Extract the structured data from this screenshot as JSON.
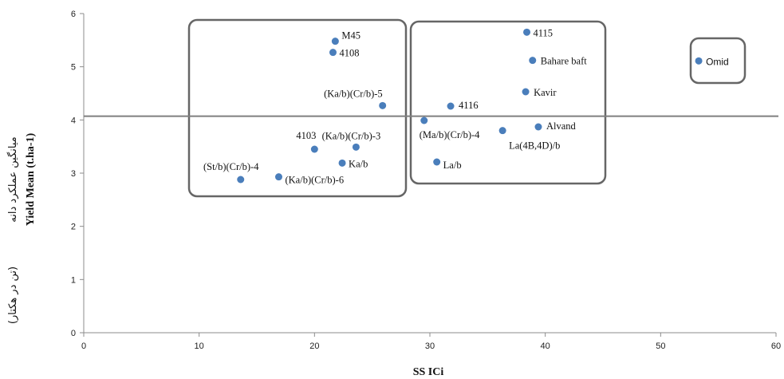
{
  "chart_data": {
    "type": "scatter",
    "title": "",
    "xlabel": "SS ICi",
    "ylabel": "Yield Mean (t.ha-1)",
    "ylabel_fa_line1": "میانگین عملکرد دانه",
    "ylabel_fa_line2": "(تن در هکتار)",
    "xlim": [
      0,
      60
    ],
    "ylim": [
      0,
      6
    ],
    "x_ticks": [
      0,
      10,
      20,
      30,
      40,
      50,
      60
    ],
    "y_ticks": [
      0,
      1,
      2,
      3,
      4,
      5,
      6
    ],
    "grid": false,
    "legend": "none",
    "reference_line_y": 4.07,
    "marker_color": "#4a7ebb",
    "line_color": "#7f7f7f",
    "points": [
      {
        "label": "M45",
        "x": 21.8,
        "y": 5.48
      },
      {
        "label": "4108",
        "x": 21.6,
        "y": 5.27
      },
      {
        "label": "(Ka/b)(Cr/b)-5",
        "x": 25.9,
        "y": 4.27
      },
      {
        "label": "4103",
        "x": 20.0,
        "y": 3.45
      },
      {
        "label": "(Ka/b)(Cr/b)-3",
        "x": 23.6,
        "y": 3.49
      },
      {
        "label": "Ka/b",
        "x": 22.4,
        "y": 3.19
      },
      {
        "label": "(St/b)(Cr/b)-4",
        "x": 13.6,
        "y": 2.88
      },
      {
        "label": "(Ka/b)(Cr/b)-6",
        "x": 16.9,
        "y": 2.93
      },
      {
        "label": "4115",
        "x": 38.4,
        "y": 5.65
      },
      {
        "label": "Bahare baft",
        "x": 38.9,
        "y": 5.12
      },
      {
        "label": "Kavir",
        "x": 38.3,
        "y": 4.53
      },
      {
        "label": "4116",
        "x": 31.8,
        "y": 4.26
      },
      {
        "label": "(Ma/b)(Cr/b)-4",
        "x": 29.5,
        "y": 3.99
      },
      {
        "label": "La(4B,4D)/b",
        "x": 36.3,
        "y": 3.8
      },
      {
        "label": "Alvand",
        "x": 39.4,
        "y": 3.87
      },
      {
        "label": "La/b",
        "x": 30.6,
        "y": 3.21
      },
      {
        "label": "Omid",
        "x": 53.3,
        "y": 5.11
      }
    ]
  }
}
